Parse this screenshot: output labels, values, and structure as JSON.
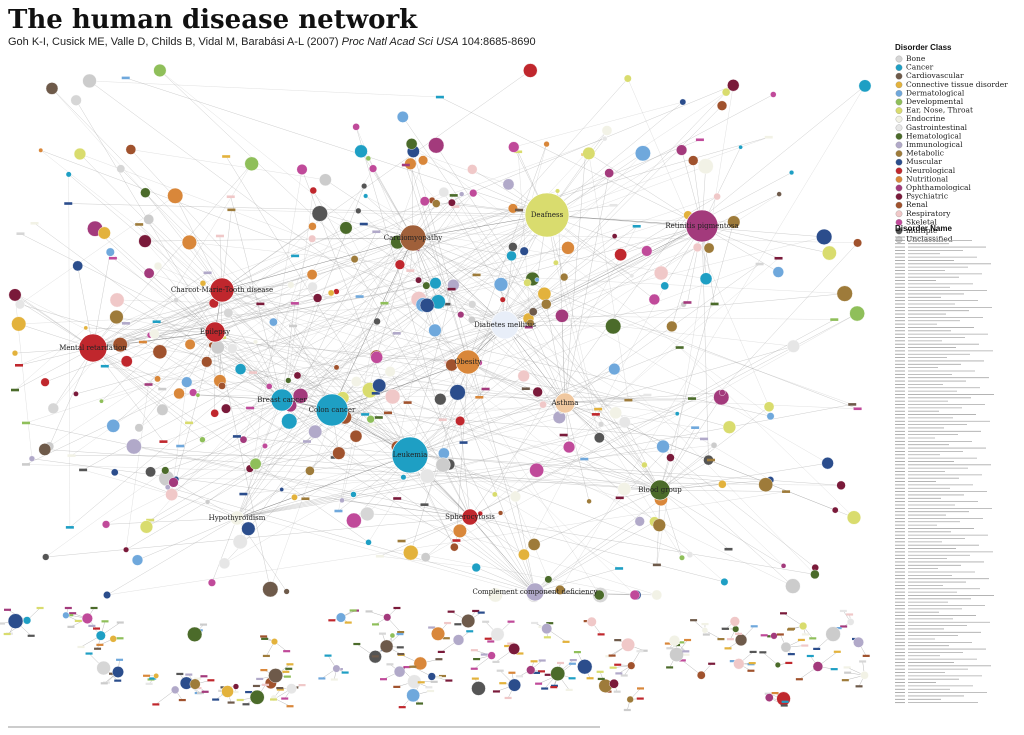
{
  "header": {
    "title": "The human disease network",
    "citation": {
      "authors": "Goh K-I, Cusick ME, Valle D, Childs B, Vidal M, Barabási A-L (2007)",
      "journal": "Proc Natl Acad Sci USA",
      "volume": "104:8685-8690"
    }
  },
  "legend": {
    "title": "Disorder Class",
    "names_title": "Disorder Name",
    "classes": [
      {
        "name": "Bone",
        "color": "#d6d6d6"
      },
      {
        "name": "Cancer",
        "color": "#1e9fc4"
      },
      {
        "name": "Cardiovascular",
        "color": "#6e5a4a"
      },
      {
        "name": "Connective tissue disorder",
        "color": "#e3b23c"
      },
      {
        "name": "Dermatological",
        "color": "#6fa8dc"
      },
      {
        "name": "Developmental",
        "color": "#8fbf5a"
      },
      {
        "name": "Ear, Nose, Throat",
        "color": "#d9dc6e"
      },
      {
        "name": "Endocrine",
        "color": "#f2f2e6"
      },
      {
        "name": "Gastrointestinal",
        "color": "#e6e6e6"
      },
      {
        "name": "Hematological",
        "color": "#4b6b2a"
      },
      {
        "name": "Immunological",
        "color": "#b1a9c9"
      },
      {
        "name": "Metabolic",
        "color": "#9e7b3a"
      },
      {
        "name": "Muscular",
        "color": "#2b4d8c"
      },
      {
        "name": "Neurological",
        "color": "#c0272d"
      },
      {
        "name": "Nutritional",
        "color": "#d9873a"
      },
      {
        "name": "Ophthamological",
        "color": "#a33a7c"
      },
      {
        "name": "Psychiatric",
        "color": "#7a1a3a"
      },
      {
        "name": "Renal",
        "color": "#a0522d"
      },
      {
        "name": "Respiratory",
        "color": "#f0c8c8"
      },
      {
        "name": "Skeletal",
        "color": "#c04a9a"
      },
      {
        "name": "multiple",
        "color": "#555555"
      },
      {
        "name": "Unclassified",
        "color": "#cccccc"
      }
    ]
  },
  "nodes": [
    {
      "label": "Deafness",
      "color": "#d9dc6e"
    },
    {
      "label": "Cardiomyopathy",
      "color": "#a0603a"
    },
    {
      "label": "Diabetes mellitus",
      "color": "#e8eef8"
    },
    {
      "label": "Obesity",
      "color": "#d9873a"
    },
    {
      "label": "Asthma",
      "color": "#f0c8a0"
    },
    {
      "label": "Colon cancer",
      "color": "#1e9fc4"
    },
    {
      "label": "Leukemia",
      "color": "#1e9fc4"
    },
    {
      "label": "Breast cancer",
      "color": "#1e9fc4"
    },
    {
      "label": "Retinitis pigmentosa",
      "color": "#a33a7c"
    },
    {
      "label": "Mental retardation",
      "color": "#c0272d"
    },
    {
      "label": "Epilepsy",
      "color": "#c0272d"
    },
    {
      "label": "Charcot-Marie-Tooth disease",
      "color": "#c0272d"
    },
    {
      "label": "Blood group",
      "color": "#4b6b2a"
    },
    {
      "label": "Complement component deficiency",
      "color": "#b1a9c9"
    },
    {
      "label": "Hypothyroidism",
      "color": "#f2f2e6"
    },
    {
      "label": "Spherocytosis",
      "color": "#c0272d"
    }
  ]
}
